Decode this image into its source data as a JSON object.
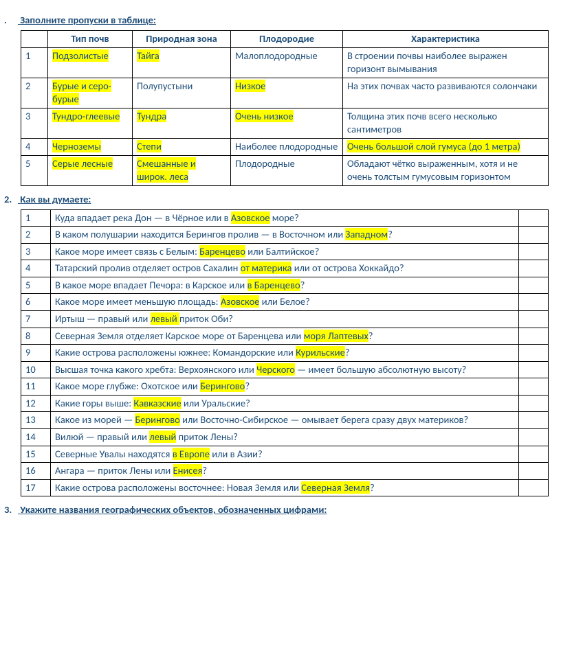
{
  "section1": {
    "marker": ".",
    "title": "Заполните пропуски в таблице:",
    "headers": [
      "",
      "Тип почв",
      "Природная зона",
      "Плодородие",
      "Характеристика"
    ],
    "rows": [
      {
        "n": "1",
        "soil": [
          {
            "t": "Подзолистые",
            "hl": true
          }
        ],
        "zone": [
          {
            "t": "Тайга",
            "hl": true
          }
        ],
        "fert": [
          {
            "t": "Малоплодородные",
            "hl": false
          }
        ],
        "char": [
          {
            "t": "В строении почвы наиболее выражен горизонт вымывания",
            "hl": false
          }
        ]
      },
      {
        "n": "2",
        "soil": [
          {
            "t": "Бурые и серо-бурые",
            "hl": true
          }
        ],
        "zone": [
          {
            "t": "Полупустыни",
            "hl": false
          }
        ],
        "fert": [
          {
            "t": "Низкое",
            "hl": true
          }
        ],
        "char": [
          {
            "t": "На этих почвах часто развиваются солончаки",
            "hl": false
          }
        ]
      },
      {
        "n": "3",
        "soil": [
          {
            "t": "Тундро-глеевые",
            "hl": true
          }
        ],
        "zone": [
          {
            "t": "Тундра",
            "hl": true
          }
        ],
        "fert": [
          {
            "t": "Очень низкое",
            "hl": true
          }
        ],
        "char": [
          {
            "t": "Толщина этих почв всего несколько сантиметров",
            "hl": false
          }
        ]
      },
      {
        "n": "4",
        "soil": [
          {
            "t": "Черноземы",
            "hl": true
          }
        ],
        "zone": [
          {
            "t": "Степи",
            "hl": true
          }
        ],
        "fert": [
          {
            "t": "Наиболее плодородные",
            "hl": false
          }
        ],
        "char": [
          {
            "t": "Очень большой слой гумуса (до 1 метра)",
            "hl": true
          }
        ]
      },
      {
        "n": "5",
        "soil": [
          {
            "t": "Серые лесные",
            "hl": true
          }
        ],
        "zone": [
          {
            "t": "Смешанные и широк. леса",
            "hl": true
          }
        ],
        "fert": [
          {
            "t": "Плодородные",
            "hl": false
          }
        ],
        "char": [
          {
            "t": "Обладают чётко выраженным, хотя и не очень толстым гумусовым горизонтом",
            "hl": false
          }
        ]
      }
    ]
  },
  "section2": {
    "marker": "2.",
    "title": "Как вы думаете:",
    "rows": [
      {
        "n": "1",
        "parts": [
          {
            "t": "Куда впадает река Дон — в Чёрное или в "
          },
          {
            "t": "Азовское",
            "hl": true
          },
          {
            "t": " море?"
          }
        ]
      },
      {
        "n": "2",
        "parts": [
          {
            "t": "В каком полушарии находится Берингов пролив — в Восточном или "
          },
          {
            "t": "Западном",
            "hl": true
          },
          {
            "t": "?"
          }
        ]
      },
      {
        "n": "3",
        "parts": [
          {
            "t": "Какое море имеет связь с Белым: "
          },
          {
            "t": "Баренцево",
            "hl": true
          },
          {
            "t": " или Балтийское?"
          }
        ]
      },
      {
        "n": "4",
        "parts": [
          {
            "t": "Татарский пролив отделяет остров Сахалин "
          },
          {
            "t": "от материка",
            "hl": true
          },
          {
            "t": " или от острова Хоккайдо?"
          }
        ]
      },
      {
        "n": "5",
        "parts": [
          {
            "t": "В какое море впадает Печора: в Карское или "
          },
          {
            "t": "в Баренцево",
            "hl": true
          },
          {
            "t": "?"
          }
        ]
      },
      {
        "n": "6",
        "parts": [
          {
            "t": "Какое море имеет меньшую площадь: "
          },
          {
            "t": "Азовское",
            "hl": true
          },
          {
            "t": " или Белое?"
          }
        ]
      },
      {
        "n": "7",
        "parts": [
          {
            "t": "Иртыш   —    правый   или  "
          },
          {
            "t": " левый ",
            "hl": true
          },
          {
            "t": "  приток Оби?"
          }
        ]
      },
      {
        "n": "8",
        "parts": [
          {
            "t": "Северная Земля отделяет Карское море от Баренцева или "
          },
          {
            "t": "моря Лаптевых",
            "hl": true
          },
          {
            "t": "?"
          }
        ]
      },
      {
        "n": "9",
        "parts": [
          {
            "t": "Какие острова расположены южнее: Командорские или "
          },
          {
            "t": "Курильские",
            "hl": true
          },
          {
            "t": "?"
          }
        ]
      },
      {
        "n": "10",
        "parts": [
          {
            "t": "Высшая точка какого хребта: Верхоянского или "
          },
          {
            "t": "Черского",
            "hl": true
          },
          {
            "t": " — имеет большую абсолютную высоту?"
          }
        ]
      },
      {
        "n": "11",
        "parts": [
          {
            "t": "Какое море глубже: Охотское или "
          },
          {
            "t": "Берингово",
            "hl": true
          },
          {
            "t": "?"
          }
        ]
      },
      {
        "n": "12",
        "parts": [
          {
            "t": "Какие горы выше: "
          },
          {
            "t": "Кавказские",
            "hl": true
          },
          {
            "t": " или Уральские?"
          }
        ]
      },
      {
        "n": "13",
        "parts": [
          {
            "t": "Какое из морей — "
          },
          {
            "t": "Берингово",
            "hl": true
          },
          {
            "t": " или Восточно-Сибирское — омывает берега сразу двух материков?"
          }
        ]
      },
      {
        "n": "14",
        "parts": [
          {
            "t": "Вилюй — правый или "
          },
          {
            "t": "левый",
            "hl": true
          },
          {
            "t": " приток Лены?"
          }
        ]
      },
      {
        "n": "15",
        "parts": [
          {
            "t": "Северные Увалы находятся "
          },
          {
            "t": "в Европе",
            "hl": true
          },
          {
            "t": " или в Азии?"
          }
        ]
      },
      {
        "n": "16",
        "parts": [
          {
            "t": "Ангара — приток Лены или "
          },
          {
            "t": "Енисея",
            "hl": true
          },
          {
            "t": "?"
          }
        ]
      },
      {
        "n": "17",
        "parts": [
          {
            "t": "Какие острова расположены восточнее: Новая Земля или "
          },
          {
            "t": "Северная Земля",
            "hl": true
          },
          {
            "t": "?"
          }
        ]
      }
    ]
  },
  "section3": {
    "marker": "3.",
    "title": "Укажите названия географических объектов, обозначенных цифрами:"
  }
}
